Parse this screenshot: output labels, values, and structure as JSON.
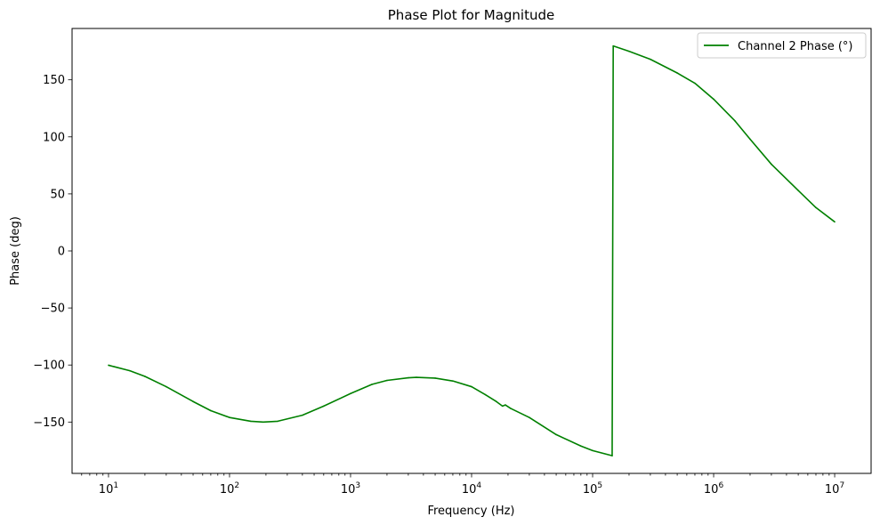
{
  "chart_data": {
    "type": "line",
    "title": "Phase Plot for Magnitude",
    "xlabel": "Frequency (Hz)",
    "ylabel": "Phase (deg)",
    "xscale": "log",
    "xlim": [
      5,
      20000000
    ],
    "ylim": [
      -195,
      195
    ],
    "grid": false,
    "legend_position": "top-right",
    "x_ticks": [
      {
        "value": 10,
        "base": "10",
        "exp": "1"
      },
      {
        "value": 100,
        "base": "10",
        "exp": "2"
      },
      {
        "value": 1000,
        "base": "10",
        "exp": "3"
      },
      {
        "value": 10000,
        "base": "10",
        "exp": "4"
      },
      {
        "value": 100000,
        "base": "10",
        "exp": "5"
      },
      {
        "value": 1000000,
        "base": "10",
        "exp": "6"
      },
      {
        "value": 10000000,
        "base": "10",
        "exp": "7"
      }
    ],
    "y_ticks": [
      {
        "value": -150,
        "label": "−150"
      },
      {
        "value": -100,
        "label": "−100"
      },
      {
        "value": -50,
        "label": "−50"
      },
      {
        "value": 0,
        "label": "0"
      },
      {
        "value": 50,
        "label": "50"
      },
      {
        "value": 100,
        "label": "100"
      },
      {
        "value": 150,
        "label": "150"
      }
    ],
    "series": [
      {
        "name": "Channel 2 Phase (°)",
        "color": "#008000",
        "points": [
          [
            10,
            -100.2
          ],
          [
            15,
            -105
          ],
          [
            20,
            -110
          ],
          [
            30,
            -119
          ],
          [
            50,
            -132
          ],
          [
            70,
            -140
          ],
          [
            100,
            -146
          ],
          [
            150,
            -149.3
          ],
          [
            190,
            -150
          ],
          [
            250,
            -149.3
          ],
          [
            400,
            -144
          ],
          [
            600,
            -136
          ],
          [
            1000,
            -125
          ],
          [
            1500,
            -117
          ],
          [
            2000,
            -113.5
          ],
          [
            3000,
            -111.2
          ],
          [
            3500,
            -110.8
          ],
          [
            5000,
            -111.5
          ],
          [
            7000,
            -114
          ],
          [
            10000,
            -119
          ],
          [
            13000,
            -126
          ],
          [
            16000,
            -132
          ],
          [
            18000,
            -136
          ],
          [
            19000,
            -135
          ],
          [
            21000,
            -138
          ],
          [
            30000,
            -146
          ],
          [
            50000,
            -161
          ],
          [
            80000,
            -171
          ],
          [
            100000,
            -175
          ],
          [
            145000,
            -179.5
          ],
          [
            148000,
            179.7
          ],
          [
            200000,
            175
          ],
          [
            300000,
            168
          ],
          [
            500000,
            156
          ],
          [
            700000,
            147
          ],
          [
            1000000,
            133
          ],
          [
            1500000,
            114
          ],
          [
            2000000,
            98
          ],
          [
            3000000,
            76
          ],
          [
            5000000,
            53
          ],
          [
            7000000,
            38
          ],
          [
            10000000,
            25.5
          ]
        ]
      }
    ]
  }
}
